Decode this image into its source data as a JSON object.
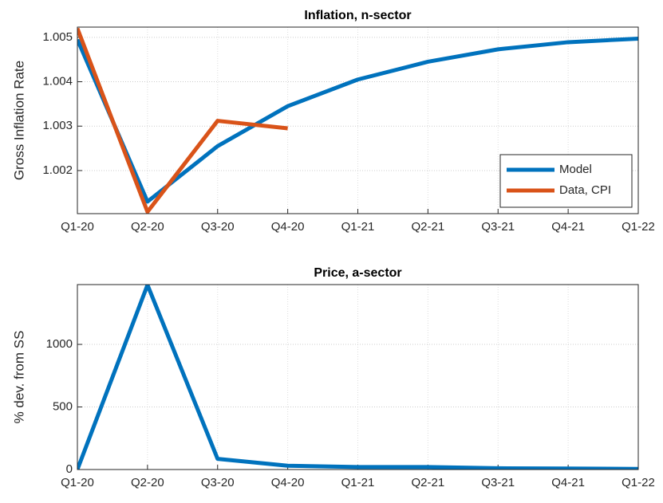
{
  "chart_data": [
    {
      "type": "line",
      "title": "Inflation, n-sector",
      "y_label": "Gross Inflation Rate",
      "categories": [
        "Q1-20",
        "Q2-20",
        "Q3-20",
        "Q4-20",
        "Q1-21",
        "Q2-21",
        "Q3-21",
        "Q4-21",
        "Q1-22"
      ],
      "series": [
        {
          "name": "Model",
          "color": "#0072BD",
          "values": [
            1.00495,
            1.0013,
            1.00255,
            1.00345,
            1.00405,
            1.00445,
            1.00473,
            1.00489,
            1.00497
          ]
        },
        {
          "name": "Data, CPI",
          "color": "#D95319",
          "values": [
            1.0052,
            1.00107,
            1.00312,
            1.00295,
            null,
            null,
            null,
            null,
            null
          ]
        }
      ],
      "ylim": [
        1.00103,
        1.00523
      ],
      "yticks": [
        1.002,
        1.003,
        1.004,
        1.005
      ],
      "grid": true,
      "legend": "lower right"
    },
    {
      "type": "line",
      "title": "Price, a-sector",
      "y_label": "% dev. from SS",
      "categories": [
        "Q1-20",
        "Q2-20",
        "Q3-20",
        "Q4-20",
        "Q1-21",
        "Q2-21",
        "Q3-21",
        "Q4-21",
        "Q1-22"
      ],
      "series": [
        {
          "color": "#0072BD",
          "values": [
            0,
            1475,
            85,
            30,
            20,
            20,
            10,
            8,
            5
          ]
        }
      ],
      "ylim": [
        0,
        1478
      ],
      "yticks": [
        0,
        500,
        1000
      ],
      "grid": true
    }
  ]
}
